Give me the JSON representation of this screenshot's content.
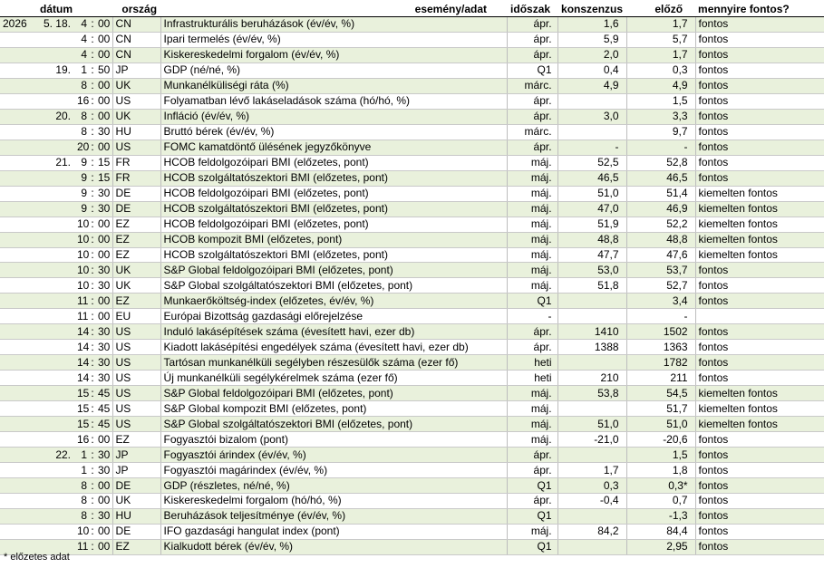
{
  "headers": {
    "date": "dátum",
    "country": "ország",
    "event": "esemény/adat",
    "period": "időszak",
    "consensus": "konszenzus",
    "previous": "előző",
    "importance": "mennyire fontos?"
  },
  "rows": [
    {
      "year": "2026",
      "md": "5.  18.",
      "h": "4",
      "m": "00",
      "country": "CN",
      "event": "Infrastrukturális beruházások (év/év, %)",
      "period": "ápr.",
      "consensus": "1,6",
      "previous": "1,7",
      "importance": "fontos"
    },
    {
      "year": "",
      "md": "",
      "h": "4",
      "m": "00",
      "country": "CN",
      "event": "Ipari termelés (év/év, %)",
      "period": "ápr.",
      "consensus": "5,9",
      "previous": "5,7",
      "importance": "fontos"
    },
    {
      "year": "",
      "md": "",
      "h": "4",
      "m": "00",
      "country": "CN",
      "event": "Kiskereskedelmi forgalom (év/év, %)",
      "period": "ápr.",
      "consensus": "2,0",
      "previous": "1,7",
      "importance": "fontos"
    },
    {
      "year": "",
      "md": "19.",
      "h": "1",
      "m": "50",
      "country": "JP",
      "event": "GDP (né/né, %)",
      "period": "Q1",
      "consensus": "0,4",
      "previous": "0,3",
      "importance": "fontos"
    },
    {
      "year": "",
      "md": "",
      "h": "8",
      "m": "00",
      "country": "UK",
      "event": "Munkanélküliségi ráta (%)",
      "period": "márc.",
      "consensus": "4,9",
      "previous": "4,9",
      "importance": "fontos"
    },
    {
      "year": "",
      "md": "",
      "h": "16",
      "m": "00",
      "country": "US",
      "event": "Folyamatban lévő lakáseladások száma (hó/hó, %)",
      "period": "ápr.",
      "consensus": "",
      "previous": "1,5",
      "importance": "fontos"
    },
    {
      "year": "",
      "md": "20.",
      "h": "8",
      "m": "00",
      "country": "UK",
      "event": "Infláció (év/év, %)",
      "period": "ápr.",
      "consensus": "3,0",
      "previous": "3,3",
      "importance": "fontos"
    },
    {
      "year": "",
      "md": "",
      "h": "8",
      "m": "30",
      "country": "HU",
      "event": "Bruttó bérek (év/év, %)",
      "period": "márc.",
      "consensus": "",
      "previous": "9,7",
      "importance": "fontos"
    },
    {
      "year": "",
      "md": "",
      "h": "20",
      "m": "00",
      "country": "US",
      "event": "FOMC kamatdöntő ülésének jegyzőkönyve",
      "period": "ápr.",
      "consensus": "-",
      "previous": "-",
      "importance": "fontos"
    },
    {
      "year": "",
      "md": "21.",
      "h": "9",
      "m": "15",
      "country": "FR",
      "event": "HCOB feldolgozóipari BMI (előzetes, pont)",
      "period": "máj.",
      "consensus": "52,5",
      "previous": "52,8",
      "importance": "fontos"
    },
    {
      "year": "",
      "md": "",
      "h": "9",
      "m": "15",
      "country": "FR",
      "event": "HCOB szolgáltatószektori BMI (előzetes, pont)",
      "period": "máj.",
      "consensus": "46,5",
      "previous": "46,5",
      "importance": "fontos"
    },
    {
      "year": "",
      "md": "",
      "h": "9",
      "m": "30",
      "country": "DE",
      "event": "HCOB feldolgozóipari BMI (előzetes, pont)",
      "period": "máj.",
      "consensus": "51,0",
      "previous": "51,4",
      "importance": "kiemelten fontos"
    },
    {
      "year": "",
      "md": "",
      "h": "9",
      "m": "30",
      "country": "DE",
      "event": "HCOB szolgáltatószektori BMI (előzetes, pont)",
      "period": "máj.",
      "consensus": "47,0",
      "previous": "46,9",
      "importance": "kiemelten fontos"
    },
    {
      "year": "",
      "md": "",
      "h": "10",
      "m": "00",
      "country": "EZ",
      "event": "HCOB feldolgozóipari BMI (előzetes, pont)",
      "period": "máj.",
      "consensus": "51,9",
      "previous": "52,2",
      "importance": "kiemelten fontos"
    },
    {
      "year": "",
      "md": "",
      "h": "10",
      "m": "00",
      "country": "EZ",
      "event": "HCOB kompozit BMI (előzetes, pont)",
      "period": "máj.",
      "consensus": "48,8",
      "previous": "48,8",
      "importance": "kiemelten fontos"
    },
    {
      "year": "",
      "md": "",
      "h": "10",
      "m": "00",
      "country": "EZ",
      "event": "HCOB szolgáltatószektori BMI (előzetes, pont)",
      "period": "máj.",
      "consensus": "47,7",
      "previous": "47,6",
      "importance": "kiemelten fontos"
    },
    {
      "year": "",
      "md": "",
      "h": "10",
      "m": "30",
      "country": "UK",
      "event": "S&P Global feldolgozóipari BMI (előzetes, pont)",
      "period": "máj.",
      "consensus": "53,0",
      "previous": "53,7",
      "importance": "fontos"
    },
    {
      "year": "",
      "md": "",
      "h": "10",
      "m": "30",
      "country": "UK",
      "event": "S&P Global szolgáltatószektori BMI (előzetes, pont)",
      "period": "máj.",
      "consensus": "51,8",
      "previous": "52,7",
      "importance": "fontos"
    },
    {
      "year": "",
      "md": "",
      "h": "11",
      "m": "00",
      "country": "EZ",
      "event": "Munkaerőköltség-index (előzetes, év/év, %)",
      "period": "Q1",
      "consensus": "",
      "previous": "3,4",
      "importance": "fontos"
    },
    {
      "year": "",
      "md": "",
      "h": "11",
      "m": "00",
      "country": "EU",
      "event": "Európai Bizottság gazdasági előrejelzése",
      "period": "-",
      "consensus": "",
      "previous": "-",
      "importance": ""
    },
    {
      "year": "",
      "md": "",
      "h": "14",
      "m": "30",
      "country": "US",
      "event": "Induló lakásépítések száma (évesített havi, ezer db)",
      "period": "ápr.",
      "consensus": "1410",
      "previous": "1502",
      "importance": "fontos"
    },
    {
      "year": "",
      "md": "",
      "h": "14",
      "m": "30",
      "country": "US",
      "event": "Kiadott lakásépítési engedélyek száma (évesített havi, ezer db)",
      "period": "ápr.",
      "consensus": "1388",
      "previous": "1363",
      "importance": "fontos"
    },
    {
      "year": "",
      "md": "",
      "h": "14",
      "m": "30",
      "country": "US",
      "event": "Tartósan munkanélküli segélyben részesülők száma (ezer fő)",
      "period": "heti",
      "consensus": "",
      "previous": "1782",
      "importance": "fontos"
    },
    {
      "year": "",
      "md": "",
      "h": "14",
      "m": "30",
      "country": "US",
      "event": "Új munkanélküli segélykérelmek száma (ezer fő)",
      "period": "heti",
      "consensus": "210",
      "previous": "211",
      "importance": "fontos"
    },
    {
      "year": "",
      "md": "",
      "h": "15",
      "m": "45",
      "country": "US",
      "event": "S&P Global feldolgozóipari BMI (előzetes, pont)",
      "period": "máj.",
      "consensus": "53,8",
      "previous": "54,5",
      "importance": "kiemelten fontos"
    },
    {
      "year": "",
      "md": "",
      "h": "15",
      "m": "45",
      "country": "US",
      "event": "S&P Global kompozit BMI (előzetes, pont)",
      "period": "máj.",
      "consensus": "",
      "previous": "51,7",
      "importance": "kiemelten fontos"
    },
    {
      "year": "",
      "md": "",
      "h": "15",
      "m": "45",
      "country": "US",
      "event": "S&P Global szolgáltatószektori BMI (előzetes, pont)",
      "period": "máj.",
      "consensus": "51,0",
      "previous": "51,0",
      "importance": "kiemelten fontos"
    },
    {
      "year": "",
      "md": "",
      "h": "16",
      "m": "00",
      "country": "EZ",
      "event": "Fogyasztói bizalom (pont)",
      "period": "máj.",
      "consensus": "-21,0",
      "previous": "-20,6",
      "importance": "fontos"
    },
    {
      "year": "",
      "md": "22.",
      "h": "1",
      "m": "30",
      "country": "JP",
      "event": "Fogyasztói árindex (év/év, %)",
      "period": "ápr.",
      "consensus": "",
      "previous": "1,5",
      "importance": "fontos"
    },
    {
      "year": "",
      "md": "",
      "h": "1",
      "m": "30",
      "country": "JP",
      "event": "Fogyasztói magárindex (év/év, %)",
      "period": "ápr.",
      "consensus": "1,7",
      "previous": "1,8",
      "importance": "fontos"
    },
    {
      "year": "",
      "md": "",
      "h": "8",
      "m": "00",
      "country": "DE",
      "event": "GDP (részletes, né/né, %)",
      "period": "Q1",
      "consensus": "0,3",
      "previous": "0,3*",
      "importance": "fontos"
    },
    {
      "year": "",
      "md": "",
      "h": "8",
      "m": "00",
      "country": "UK",
      "event": "Kiskereskedelmi forgalom (hó/hó, %)",
      "period": "ápr.",
      "consensus": "-0,4",
      "previous": "0,7",
      "importance": "fontos"
    },
    {
      "year": "",
      "md": "",
      "h": "8",
      "m": "30",
      "country": "HU",
      "event": "Beruházások teljesítménye (év/év, %)",
      "period": "Q1",
      "consensus": "",
      "previous": "-1,3",
      "importance": "fontos"
    },
    {
      "year": "",
      "md": "",
      "h": "10",
      "m": "00",
      "country": "DE",
      "event": "IFO gazdasági hangulat index (pont)",
      "period": "máj.",
      "consensus": "84,2",
      "previous": "84,4",
      "importance": "fontos"
    },
    {
      "year": "",
      "md": "",
      "h": "11",
      "m": "00",
      "country": "EZ",
      "event": "Kialkudott bérek (év/év, %)",
      "period": "Q1",
      "consensus": "",
      "previous": "2,95",
      "importance": "fontos"
    }
  ],
  "footnote": "* előzetes adat"
}
